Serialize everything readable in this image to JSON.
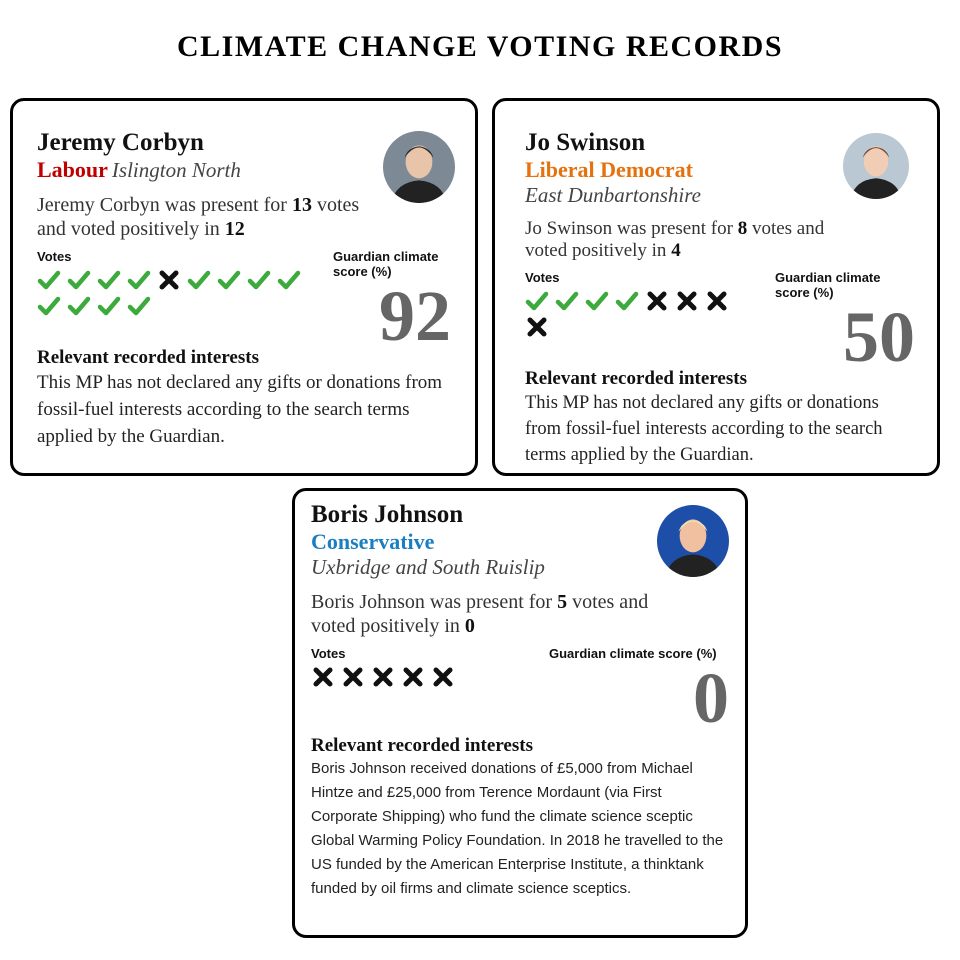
{
  "title": "CLIMATE CHANGE VOTING RECORDS",
  "cards": [
    {
      "name": "Jeremy Corbyn",
      "party": "Labour",
      "party_color": "#c00000",
      "constituency": "Islington North",
      "summary_start": "Jeremy Corbyn was present for",
      "present": 13,
      "summary_mid": "votes and voted positively in",
      "positive": 12,
      "votes_label": "Votes",
      "votes": [
        true,
        true,
        true,
        true,
        false,
        true,
        true,
        true,
        true,
        true,
        true,
        true,
        true
      ],
      "score_label": "Guardian climate score (%)",
      "score": 92,
      "interests_heading": "Relevant recorded interests",
      "interests": "This MP has not declared any gifts or donations from fossil-fuel interests according to the search terms applied by the Guardian."
    },
    {
      "name": "Jo Swinson",
      "party": "Liberal Democrat",
      "party_color": "#e6720f",
      "constituency": "East Dunbartonshire",
      "summary_start": "Jo Swinson was present for",
      "present": 8,
      "summary_mid": "votes and voted positively in",
      "positive": 4,
      "votes_label": "Votes",
      "votes": [
        true,
        true,
        true,
        true,
        false,
        false,
        false,
        false
      ],
      "score_label": "Guardian climate score (%)",
      "score": 50,
      "interests_heading": "Relevant recorded interests",
      "interests": "This MP has not declared any gifts or donations from fossil-fuel interests according to the search terms applied by the Guardian."
    },
    {
      "name": "Boris Johnson",
      "party": "Conservative",
      "party_color": "#1a7fc1",
      "constituency": "Uxbridge and South Ruislip",
      "summary_start": "Boris Johnson was present for",
      "present": 5,
      "summary_mid": "votes and voted positively in",
      "positive": 0,
      "votes_label": "Votes",
      "votes": [
        false,
        false,
        false,
        false,
        false
      ],
      "score_label": "Guardian climate score (%)",
      "score": 0,
      "interests_heading": "Relevant recorded interests",
      "interests": "Boris Johnson received donations of £5,000 from Michael Hintze and £25,000 from Terence Mordaunt (via First Corporate Shipping) who fund the climate science sceptic Global Warming Policy Foundation. In 2018 he travelled to the US funded by the American Enterprise Institute, a thinktank funded by oil firms and climate science sceptics."
    }
  ]
}
